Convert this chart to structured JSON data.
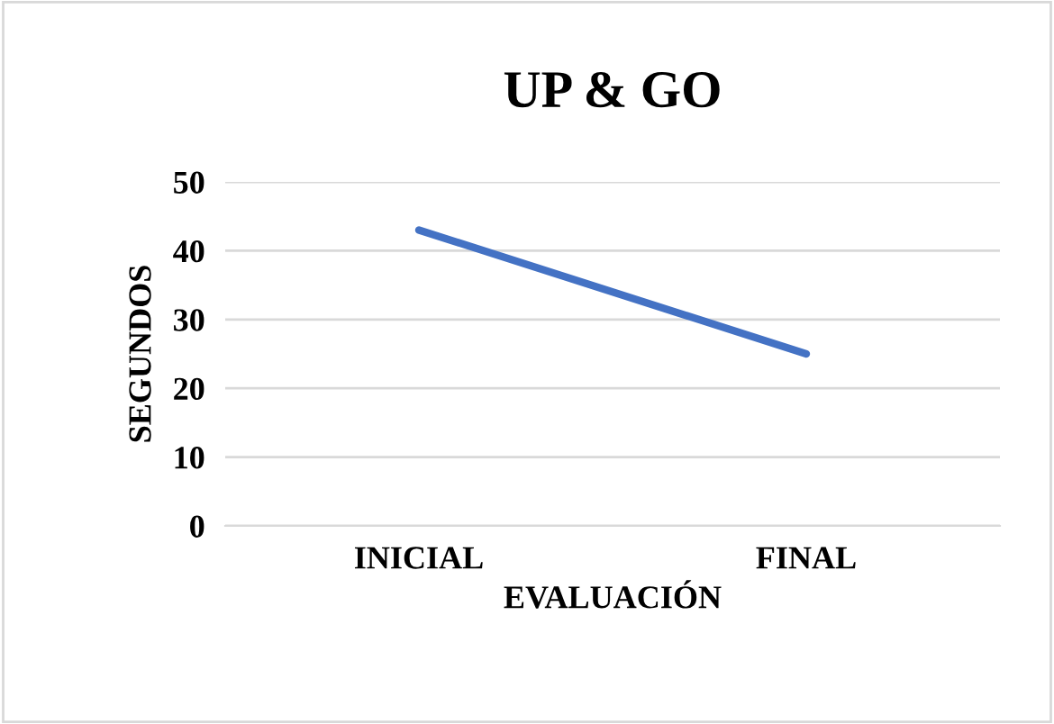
{
  "chart_data": {
    "type": "line",
    "title": "UP & GO",
    "xlabel": "EVALUACIÓN",
    "ylabel": "SEGUNDOS",
    "categories": [
      "INICIAL",
      "FINAL"
    ],
    "series": [
      {
        "color": "#4472c4",
        "values": [
          43,
          25
        ]
      }
    ],
    "ylim": [
      0,
      50
    ],
    "yticks": [
      0,
      10,
      20,
      30,
      40,
      50
    ],
    "grid": "y",
    "legend": false,
    "marker": "none",
    "line_style": "solid"
  }
}
